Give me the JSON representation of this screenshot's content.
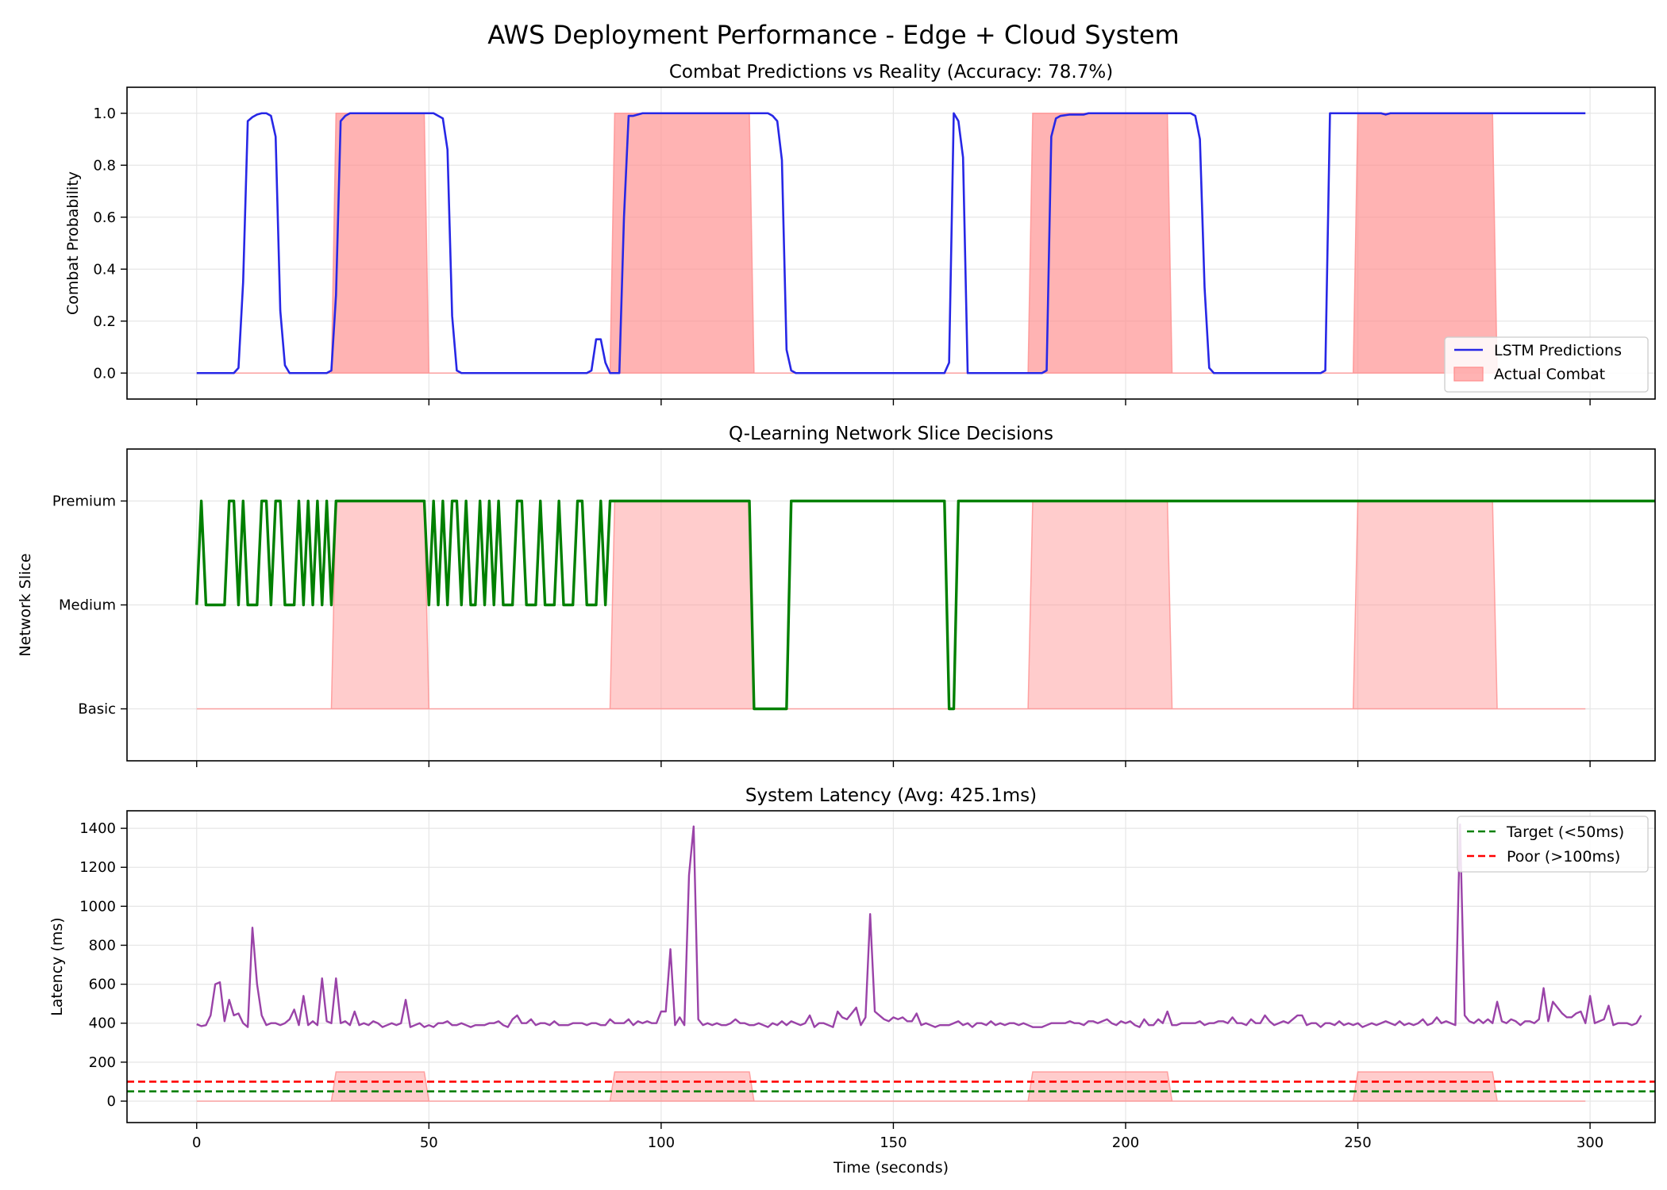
{
  "figure": {
    "suptitle": "AWS Deployment Performance - Edge + Cloud System"
  },
  "colors": {
    "prediction_line": "#2727e6",
    "combat_fill": "#ff8f8f",
    "slice_line": "#008000",
    "latency_line": "#9a43a8",
    "target_line": "#008000",
    "poor_line": "#ff0000",
    "grid": "#e6e6e6"
  },
  "chart_data": [
    {
      "type": "line",
      "title": "Combat Predictions vs Reality (Accuracy: 78.7%)",
      "ylabel": "Combat Probability",
      "xlabel": "",
      "xlim": [
        -15,
        314
      ],
      "ylim": [
        -0.1,
        1.1
      ],
      "xticks": [
        0,
        50,
        100,
        150,
        200,
        250,
        300
      ],
      "yticks": [
        0.0,
        0.2,
        0.4,
        0.6,
        0.8,
        1.0
      ],
      "ytick_labels": [
        "0.0",
        "0.2",
        "0.4",
        "0.6",
        "0.8",
        "1.0"
      ],
      "grid": true,
      "legend_position": "lower right",
      "combat_windows": [
        [
          30,
          50
        ],
        [
          90,
          120
        ],
        [
          180,
          210
        ],
        [
          250,
          280
        ]
      ],
      "series": [
        {
          "name": "LSTM Predictions",
          "kind": "line",
          "points": [
            [
              0,
              0
            ],
            [
              8,
              0
            ],
            [
              9,
              0.02
            ],
            [
              10,
              0.35
            ],
            [
              11,
              0.97
            ],
            [
              12,
              0.985
            ],
            [
              13,
              0.995
            ],
            [
              14,
              1.0
            ],
            [
              15,
              1.0
            ],
            [
              16,
              0.99
            ],
            [
              17,
              0.91
            ],
            [
              18,
              0.24
            ],
            [
              19,
              0.03
            ],
            [
              20,
              0.0
            ],
            [
              28,
              0.0
            ],
            [
              29,
              0.01
            ],
            [
              30,
              0.3
            ],
            [
              31,
              0.97
            ],
            [
              32,
              0.99
            ],
            [
              33,
              1.0
            ],
            [
              50,
              1.0
            ],
            [
              51,
              1.0
            ],
            [
              52,
              0.99
            ],
            [
              53,
              0.98
            ],
            [
              54,
              0.86
            ],
            [
              55,
              0.22
            ],
            [
              56,
              0.01
            ],
            [
              57,
              0.0
            ],
            [
              84,
              0.0
            ],
            [
              85,
              0.01
            ],
            [
              86,
              0.13
            ],
            [
              87,
              0.13
            ],
            [
              88,
              0.04
            ],
            [
              89,
              0.0
            ],
            [
              90,
              0.0
            ],
            [
              91,
              0.0
            ],
            [
              92,
              0.6
            ],
            [
              93,
              0.99
            ],
            [
              94,
              0.99
            ],
            [
              96,
              1.0
            ],
            [
              122,
              1.0
            ],
            [
              123,
              1.0
            ],
            [
              124,
              0.99
            ],
            [
              125,
              0.97
            ],
            [
              126,
              0.82
            ],
            [
              127,
              0.09
            ],
            [
              128,
              0.01
            ],
            [
              129,
              0.0
            ],
            [
              161,
              0.0
            ],
            [
              162,
              0.04
            ],
            [
              163,
              1.0
            ],
            [
              164,
              0.97
            ],
            [
              165,
              0.83
            ],
            [
              166,
              0.0
            ],
            [
              182,
              0.0
            ],
            [
              183,
              0.01
            ],
            [
              184,
              0.91
            ],
            [
              185,
              0.98
            ],
            [
              186,
              0.99
            ],
            [
              188,
              0.995
            ],
            [
              191,
              0.995
            ],
            [
              192,
              1.0
            ],
            [
              213,
              1.0
            ],
            [
              214,
              1.0
            ],
            [
              215,
              0.99
            ],
            [
              216,
              0.9
            ],
            [
              217,
              0.33
            ],
            [
              218,
              0.02
            ],
            [
              219,
              0.0
            ],
            [
              242,
              0.0
            ],
            [
              243,
              0.01
            ],
            [
              244,
              1.0
            ],
            [
              255,
              1.0
            ],
            [
              256,
              0.995
            ],
            [
              257,
              1.0
            ],
            [
              299,
              1.0
            ]
          ]
        },
        {
          "name": "Actual Combat",
          "kind": "area",
          "values_by_window": [
            [
              30,
              50,
              1
            ],
            [
              90,
              120,
              1
            ],
            [
              180,
              210,
              1
            ],
            [
              250,
              280,
              1
            ]
          ]
        }
      ]
    },
    {
      "type": "line",
      "title": "Q-Learning Network Slice Decisions",
      "ylabel": "Network Slice",
      "xlabel": "",
      "xlim": [
        -15,
        314
      ],
      "ylim": [
        -0.5,
        2.5
      ],
      "xticks": [
        0,
        50,
        100,
        150,
        200,
        250,
        300
      ],
      "yticks": [
        0,
        1,
        2
      ],
      "ytick_labels": [
        "Basic",
        "Medium",
        "Premium"
      ],
      "grid": true,
      "combat_windows": [
        [
          30,
          50
        ],
        [
          90,
          120
        ],
        [
          180,
          210
        ],
        [
          250,
          280
        ]
      ],
      "series": [
        {
          "name": "Network Slice",
          "kind": "step_sequence",
          "x_start": 0,
          "values": [
            1,
            2,
            1,
            1,
            1,
            1,
            1,
            2,
            2,
            1,
            2,
            1,
            1,
            1,
            2,
            2,
            1,
            2,
            2,
            1,
            1,
            1,
            2,
            1,
            2,
            1,
            2,
            1,
            2,
            1,
            2,
            2,
            2,
            2,
            2,
            2,
            2,
            2,
            2,
            2,
            2,
            2,
            2,
            2,
            2,
            2,
            2,
            2,
            2,
            2,
            1,
            2,
            1,
            2,
            1,
            2,
            2,
            1,
            2,
            1,
            1,
            2,
            1,
            2,
            1,
            2,
            1,
            1,
            1,
            2,
            2,
            1,
            1,
            1,
            2,
            1,
            1,
            1,
            2,
            1,
            1,
            1,
            2,
            2,
            1,
            1,
            1,
            2,
            1,
            2,
            2,
            2,
            2,
            2,
            2,
            2,
            2,
            2,
            2,
            2,
            2,
            2,
            2,
            2,
            2,
            2,
            2,
            2,
            2,
            2,
            2,
            2,
            2,
            2,
            2,
            2,
            2,
            2,
            2,
            2,
            0,
            0,
            0,
            0,
            0,
            0,
            0,
            0,
            2,
            2,
            2,
            2,
            2,
            2,
            2,
            2,
            2,
            2,
            2,
            2,
            2,
            2,
            2,
            2,
            2,
            2,
            2,
            2,
            2,
            2,
            2,
            2,
            2,
            2,
            2,
            2,
            2,
            2,
            2,
            2,
            2,
            2,
            0,
            0,
            2,
            2,
            2,
            2,
            2,
            2,
            2,
            2,
            2,
            2,
            2,
            2,
            2,
            2,
            2,
            2,
            2,
            2,
            2,
            2,
            2,
            2,
            2,
            2,
            2,
            2,
            2,
            2,
            2,
            2,
            2,
            2,
            2,
            2,
            2,
            2,
            2,
            2,
            2,
            2,
            2,
            2,
            2,
            2,
            2,
            2,
            2,
            2,
            2,
            2,
            2,
            2,
            2,
            2,
            2,
            2,
            2,
            2,
            2,
            2,
            2,
            2,
            2,
            2,
            2,
            2,
            2,
            2,
            2,
            2,
            2,
            2,
            2,
            2,
            2,
            2,
            2,
            2,
            2,
            2,
            2,
            2,
            2,
            2,
            2,
            2,
            2,
            2,
            2,
            2,
            2,
            2,
            2,
            2,
            2,
            2,
            2,
            2,
            2,
            2,
            2,
            2,
            2,
            2,
            2,
            2,
            2,
            2,
            2,
            2,
            2,
            2,
            2,
            2,
            2,
            2,
            2,
            2,
            2,
            2,
            2,
            2,
            2,
            2,
            2,
            2,
            2,
            2,
            2,
            2,
            2,
            2,
            2,
            2,
            2,
            2,
            2,
            2,
            2,
            2,
            2,
            2,
            2,
            2,
            2,
            2,
            2,
            2,
            2,
            2,
            2,
            2,
            2,
            2,
            2,
            2,
            2,
            2
          ]
        }
      ]
    },
    {
      "type": "line",
      "title": "System Latency (Avg: 425.1ms)",
      "ylabel": "Latency (ms)",
      "xlabel": "Time (seconds)",
      "xlim": [
        -15,
        314
      ],
      "ylim": [
        -110,
        1490
      ],
      "xticks": [
        0,
        50,
        100,
        150,
        200,
        250,
        300
      ],
      "yticks": [
        0,
        200,
        400,
        600,
        800,
        1000,
        1200,
        1400
      ],
      "ytick_labels": [
        "0",
        "200",
        "400",
        "600",
        "800",
        "1000",
        "1200",
        "1400"
      ],
      "grid": true,
      "legend_position": "upper right",
      "combat_windows": [
        [
          30,
          50
        ],
        [
          90,
          120
        ],
        [
          180,
          210
        ],
        [
          250,
          280
        ]
      ],
      "combat_band_height": 150,
      "series": [
        {
          "name": "Latency",
          "kind": "line",
          "x_start": 0,
          "values": [
            395,
            385,
            390,
            440,
            600,
            610,
            410,
            520,
            440,
            450,
            400,
            380,
            890,
            600,
            440,
            390,
            400,
            400,
            390,
            400,
            420,
            470,
            390,
            540,
            390,
            410,
            390,
            630,
            410,
            400,
            630,
            400,
            410,
            390,
            460,
            390,
            400,
            390,
            410,
            400,
            380,
            390,
            400,
            390,
            400,
            520,
            380,
            390,
            400,
            380,
            390,
            380,
            400,
            400,
            410,
            390,
            390,
            400,
            390,
            380,
            390,
            390,
            390,
            400,
            400,
            410,
            390,
            380,
            420,
            440,
            400,
            400,
            420,
            390,
            400,
            400,
            390,
            410,
            390,
            390,
            390,
            400,
            400,
            400,
            390,
            400,
            400,
            390,
            390,
            420,
            400,
            400,
            400,
            420,
            390,
            410,
            400,
            410,
            400,
            400,
            460,
            460,
            780,
            390,
            430,
            390,
            1160,
            1410,
            420,
            390,
            400,
            390,
            400,
            390,
            390,
            400,
            420,
            400,
            400,
            390,
            390,
            400,
            390,
            380,
            400,
            390,
            410,
            390,
            410,
            400,
            390,
            400,
            440,
            380,
            400,
            400,
            390,
            380,
            460,
            430,
            420,
            450,
            480,
            390,
            430,
            960,
            460,
            440,
            420,
            410,
            430,
            420,
            430,
            410,
            410,
            450,
            390,
            400,
            390,
            380,
            390,
            390,
            390,
            400,
            410,
            390,
            400,
            380,
            400,
            400,
            390,
            410,
            390,
            400,
            390,
            400,
            400,
            390,
            400,
            390,
            380,
            380,
            380,
            390,
            400,
            400,
            400,
            400,
            410,
            400,
            400,
            390,
            410,
            410,
            400,
            410,
            420,
            400,
            390,
            410,
            400,
            410,
            390,
            380,
            420,
            390,
            390,
            420,
            400,
            460,
            390,
            390,
            400,
            400,
            400,
            400,
            410,
            390,
            400,
            400,
            410,
            410,
            400,
            430,
            400,
            400,
            390,
            420,
            400,
            400,
            440,
            410,
            390,
            400,
            410,
            400,
            420,
            440,
            440,
            390,
            400,
            400,
            380,
            400,
            400,
            390,
            410,
            390,
            400,
            390,
            400,
            380,
            390,
            400,
            390,
            400,
            410,
            400,
            390,
            410,
            390,
            400,
            390,
            400,
            420,
            390,
            400,
            430,
            400,
            410,
            400,
            390,
            1420,
            440,
            410,
            400,
            420,
            400,
            420,
            400,
            510,
            410,
            400,
            420,
            410,
            390,
            410,
            410,
            400,
            420,
            580,
            410,
            510,
            480,
            450,
            430,
            430,
            450,
            460,
            400,
            540,
            400,
            410,
            420,
            490,
            390,
            400,
            400,
            400,
            390,
            400,
            440
          ]
        },
        {
          "name": "Target (<50ms)",
          "kind": "hline",
          "y": 50
        },
        {
          "name": "Poor (>100ms)",
          "kind": "hline",
          "y": 100
        }
      ]
    }
  ]
}
